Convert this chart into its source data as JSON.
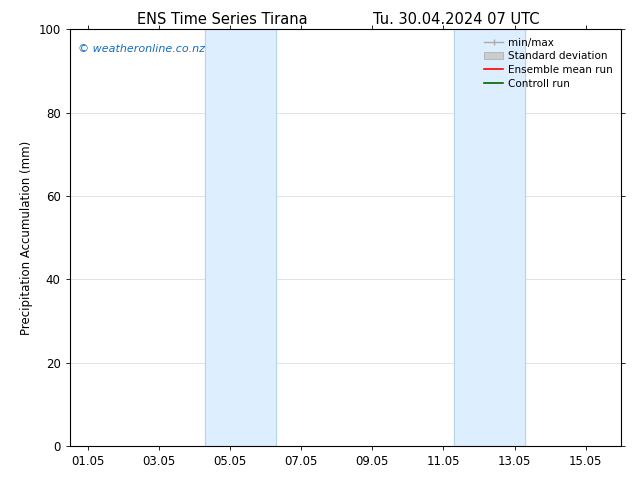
{
  "title_left": "ENS Time Series Tirana",
  "title_right": "Tu. 30.04.2024 07 UTC",
  "ylabel": "Precipitation Accumulation (mm)",
  "ylim": [
    0,
    100
  ],
  "yticks": [
    0,
    20,
    40,
    60,
    80,
    100
  ],
  "xtick_labels": [
    "01.05",
    "03.05",
    "05.05",
    "07.05",
    "09.05",
    "11.05",
    "13.05",
    "15.05"
  ],
  "xtick_positions": [
    0,
    2,
    4,
    6,
    8,
    10,
    12,
    14
  ],
  "xlim": [
    -0.5,
    15.0
  ],
  "shaded_bands": [
    {
      "x_start": 3.3,
      "x_end": 5.3,
      "color": "#ddeeff"
    },
    {
      "x_start": 10.3,
      "x_end": 12.3,
      "color": "#ddeeff"
    }
  ],
  "band_edge_color": "#b8d4e8",
  "band_edge_lw": 0.8,
  "watermark_text": "© weatheronline.co.nz",
  "watermark_color": "#1a6bb5",
  "background_color": "#ffffff",
  "plot_bg_color": "#ffffff",
  "grid_color": "#dddddd",
  "title_fontsize": 10.5,
  "ylabel_fontsize": 8.5,
  "tick_fontsize": 8.5,
  "legend_fontsize": 7.5,
  "watermark_fontsize": 8.0
}
